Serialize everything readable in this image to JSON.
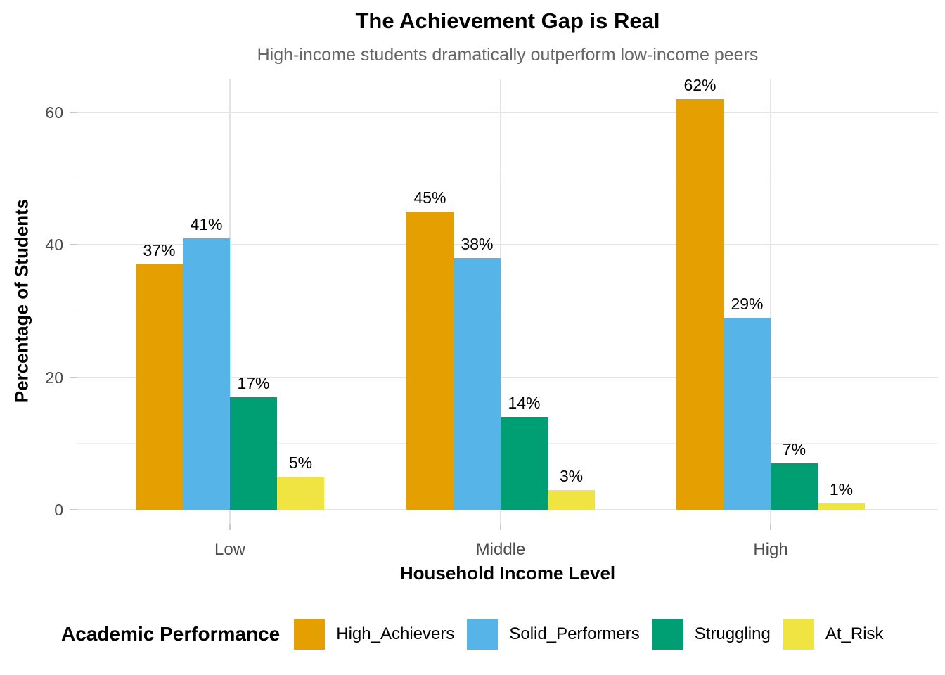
{
  "chart_data": {
    "type": "bar",
    "title": "The Achievement Gap is Real",
    "subtitle": "High-income students dramatically outperform low-income peers",
    "xlabel": "Household Income Level",
    "ylabel": "Percentage of Students",
    "categories": [
      "Low",
      "Middle",
      "High"
    ],
    "series": [
      {
        "name": "High_Achievers",
        "color": "#E69F00",
        "values": [
          37,
          45,
          62
        ],
        "labels": [
          "37%",
          "45%",
          "62%"
        ]
      },
      {
        "name": "Solid_Performers",
        "color": "#56B4E9",
        "values": [
          41,
          38,
          29
        ],
        "labels": [
          "41%",
          "38%",
          "29%"
        ]
      },
      {
        "name": "Struggling",
        "color": "#009E73",
        "values": [
          17,
          14,
          7
        ],
        "labels": [
          "17%",
          "14%",
          "7%"
        ]
      },
      {
        "name": "At_Risk",
        "color": "#F0E442",
        "values": [
          5,
          3,
          1
        ],
        "labels": [
          "5%",
          "3%",
          "1%"
        ]
      }
    ],
    "ylim": [
      0,
      65
    ],
    "y_tick_labels": [
      "0",
      "20",
      "40",
      "60"
    ],
    "y_tick_values": [
      0,
      20,
      40,
      60
    ],
    "y_minor_tick_values": [
      10,
      30,
      50
    ],
    "grid": true,
    "gridline_color": "#E4E4E4",
    "background": "#FFFFFF",
    "legend_position": "bottom",
    "legend_title": "Academic Performance"
  }
}
